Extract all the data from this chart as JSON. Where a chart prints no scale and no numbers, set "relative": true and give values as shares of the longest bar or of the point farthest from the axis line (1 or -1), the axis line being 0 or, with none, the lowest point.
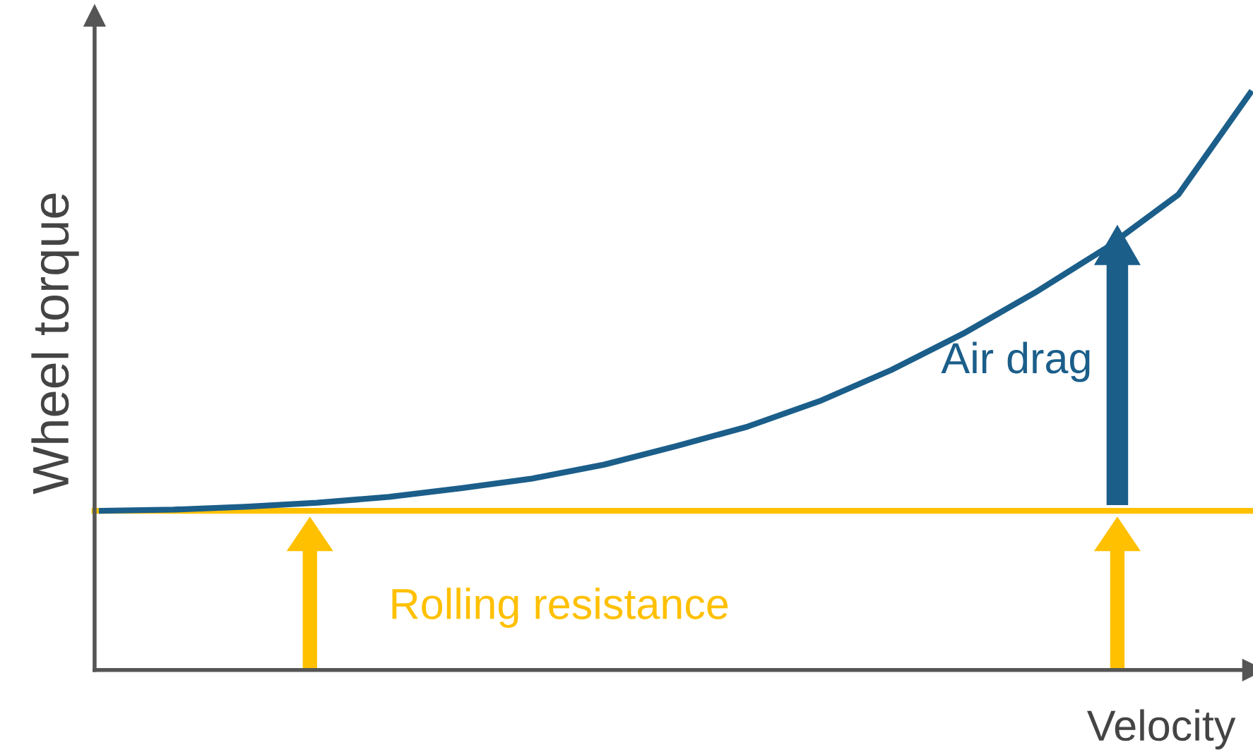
{
  "chart_data": {
    "type": "line",
    "relative": true,
    "xlabel": "Velocity",
    "ylabel": "Wheel torque",
    "categories": [
      null,
      null,
      null,
      null,
      null,
      null,
      null,
      null,
      null,
      null,
      null,
      null,
      null,
      null,
      null,
      null,
      null
    ],
    "series": [
      {
        "color": "#1b5e8a",
        "values": [
          0.276,
          0.278,
          0.283,
          0.29,
          0.3,
          0.315,
          0.332,
          0.356,
          0.388,
          0.422,
          0.466,
          0.52,
          0.583,
          0.654,
          0.732,
          0.824,
          1.0
        ]
      },
      {
        "color": "#ffc000",
        "values": [
          0.276,
          0.276,
          0.276,
          0.276,
          0.276,
          0.276,
          0.276,
          0.276,
          0.276,
          0.276,
          0.276,
          0.276,
          0.276,
          0.276,
          0.276,
          0.276,
          0.276
        ]
      }
    ],
    "annotations": [
      "Air drag",
      "Rolling resistance"
    ],
    "grid": false,
    "legend": false,
    "marker": "none",
    "line_style": "solid"
  }
}
